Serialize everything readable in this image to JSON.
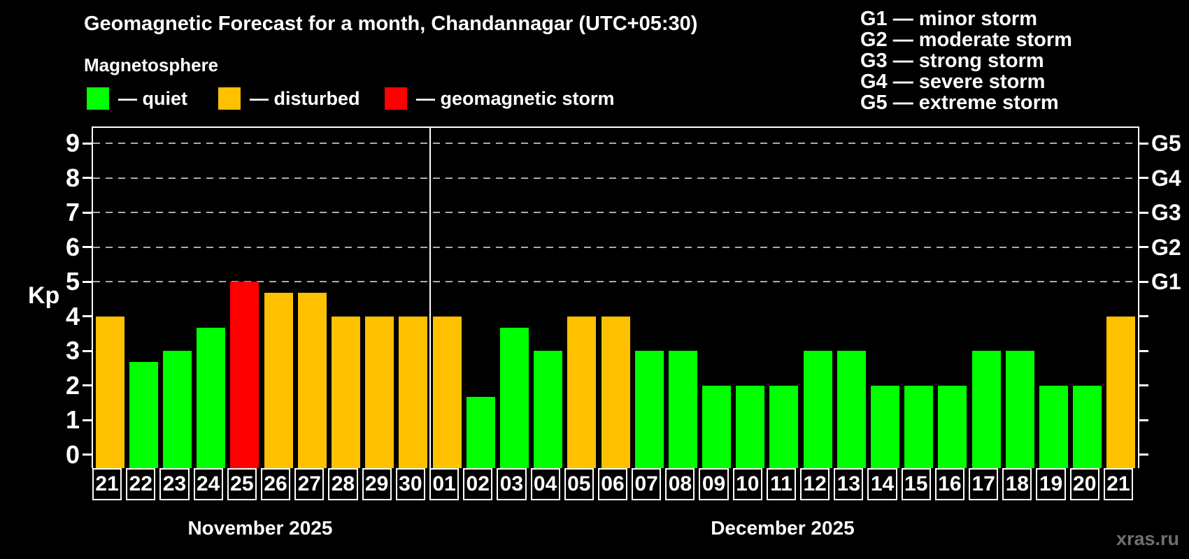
{
  "title": "Geomagnetic Forecast for a month, Chandannagar (UTC+05:30)",
  "subtitle": "Magnetosphere",
  "legend": {
    "items": [
      {
        "key": "quiet",
        "label": "— quiet",
        "color": "#00ff00"
      },
      {
        "key": "disturbed",
        "label": "— disturbed",
        "color": "#ffc000"
      },
      {
        "key": "storm",
        "label": "— geomagnetic storm",
        "color": "#ff0000"
      }
    ]
  },
  "g_legend": [
    "G1 — minor storm",
    "G2 — moderate storm",
    "G3 — strong storm",
    "G4 — severe storm",
    "G5 — extreme storm"
  ],
  "watermark": "xras.ru",
  "chart_data": {
    "type": "bar",
    "ylabel": "Kp",
    "ylim": [
      -0.4,
      9.4
    ],
    "y_ticks": [
      0,
      1,
      2,
      3,
      4,
      5,
      6,
      7,
      8,
      9
    ],
    "grid_values": [
      5,
      6,
      7,
      8,
      9
    ],
    "grid_style": "dashed gray horizontal lines at storm levels only",
    "right_axis_labels": [
      {
        "value": 5,
        "label": "G1"
      },
      {
        "value": 6,
        "label": "G2"
      },
      {
        "value": 7,
        "label": "G3"
      },
      {
        "value": 8,
        "label": "G4"
      },
      {
        "value": 9,
        "label": "G5"
      }
    ],
    "colors": {
      "quiet": "#00ff00",
      "disturbed": "#ffc000",
      "storm": "#ff0000"
    },
    "months": [
      {
        "label": "November 2025",
        "days": 10
      },
      {
        "label": "December 2025",
        "days": 21
      }
    ],
    "bars": [
      {
        "day": "21",
        "value": 4,
        "status": "disturbed"
      },
      {
        "day": "22",
        "value": 2.67,
        "status": "quiet"
      },
      {
        "day": "23",
        "value": 3,
        "status": "quiet"
      },
      {
        "day": "24",
        "value": 3.67,
        "status": "quiet"
      },
      {
        "day": "25",
        "value": 5,
        "status": "storm"
      },
      {
        "day": "26",
        "value": 4.67,
        "status": "disturbed"
      },
      {
        "day": "27",
        "value": 4.67,
        "status": "disturbed"
      },
      {
        "day": "28",
        "value": 4,
        "status": "disturbed"
      },
      {
        "day": "29",
        "value": 4,
        "status": "disturbed"
      },
      {
        "day": "30",
        "value": 4,
        "status": "disturbed"
      },
      {
        "day": "01",
        "value": 4,
        "status": "disturbed"
      },
      {
        "day": "02",
        "value": 1.67,
        "status": "quiet"
      },
      {
        "day": "03",
        "value": 3.67,
        "status": "quiet"
      },
      {
        "day": "04",
        "value": 3,
        "status": "quiet"
      },
      {
        "day": "05",
        "value": 4,
        "status": "disturbed"
      },
      {
        "day": "06",
        "value": 4,
        "status": "disturbed"
      },
      {
        "day": "07",
        "value": 3,
        "status": "quiet"
      },
      {
        "day": "08",
        "value": 3,
        "status": "quiet"
      },
      {
        "day": "09",
        "value": 2,
        "status": "quiet"
      },
      {
        "day": "10",
        "value": 2,
        "status": "quiet"
      },
      {
        "day": "11",
        "value": 2,
        "status": "quiet"
      },
      {
        "day": "12",
        "value": 3,
        "status": "quiet"
      },
      {
        "day": "13",
        "value": 3,
        "status": "quiet"
      },
      {
        "day": "14",
        "value": 2,
        "status": "quiet"
      },
      {
        "day": "15",
        "value": 2,
        "status": "quiet"
      },
      {
        "day": "16",
        "value": 2,
        "status": "quiet"
      },
      {
        "day": "17",
        "value": 3,
        "status": "quiet"
      },
      {
        "day": "18",
        "value": 3,
        "status": "quiet"
      },
      {
        "day": "19",
        "value": 2,
        "status": "quiet"
      },
      {
        "day": "20",
        "value": 2,
        "status": "quiet"
      },
      {
        "day": "21",
        "value": 4,
        "status": "disturbed"
      }
    ]
  }
}
